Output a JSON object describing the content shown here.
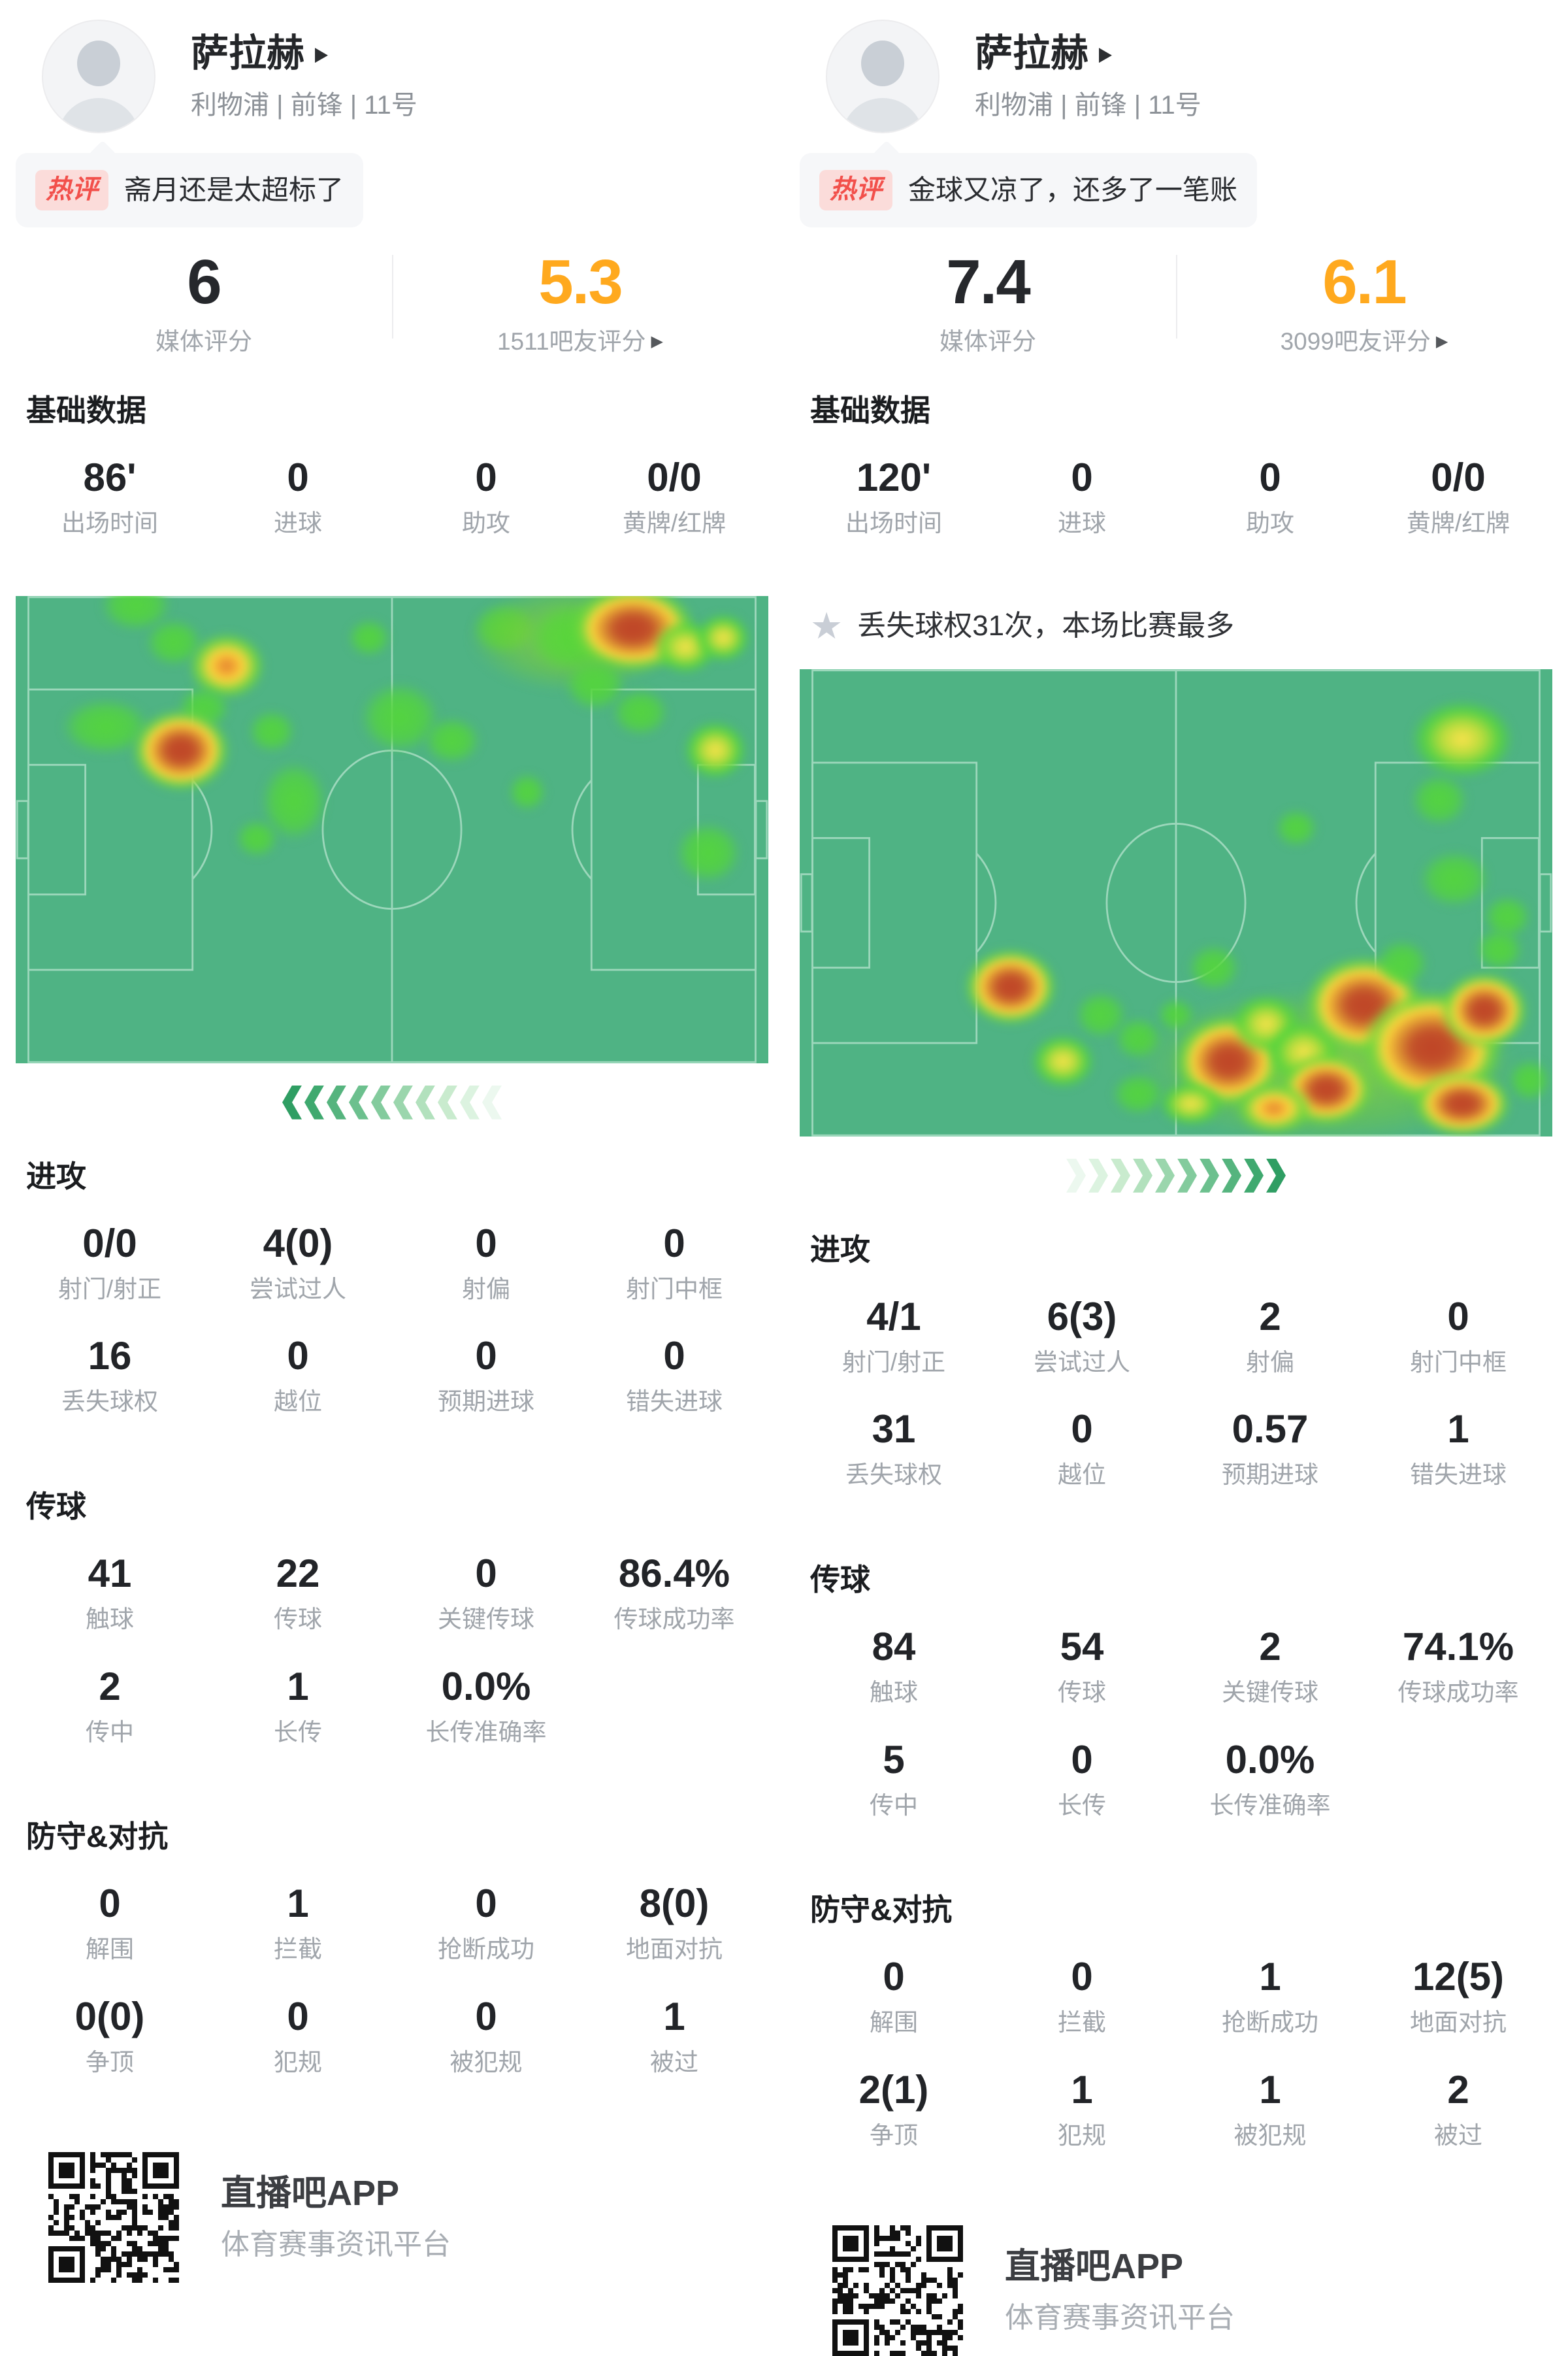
{
  "icons": {
    "name_arrow": "▶",
    "rating_arrow": "▶",
    "star": "★"
  },
  "colors": {
    "accent_orange": "#FFA91E",
    "badge_red": "#F2504B",
    "badge_bg": "#FBDCDA",
    "pitch_green": "#4FB384",
    "pitch_line": "#A5DCC2",
    "heat": {
      "g": "#54d63a",
      "y": "#ffe34d",
      "o": "#e2772e",
      "r": "#bf4326",
      "gl": "#8cd232"
    }
  },
  "app": {
    "footer_title": "直播吧APP",
    "footer_subtitle": "体育赛事资讯平台"
  },
  "panels": [
    {
      "player": {
        "name": "萨拉赫",
        "meta": "利物浦 | 前锋 | 11号"
      },
      "comment": {
        "badge": "热评",
        "text": "斋月还是太超标了"
      },
      "ratings": {
        "media_value": "6",
        "media_label": "媒体评分",
        "fan_value": "5.3",
        "fan_label": "1511吧友评分"
      },
      "basic_title": "基础数据",
      "basic_stats": [
        {
          "v": "86'",
          "l": "出场时间"
        },
        {
          "v": "0",
          "l": "进球"
        },
        {
          "v": "0",
          "l": "助攻"
        },
        {
          "v": "0/0",
          "l": "黄牌/红牌"
        }
      ],
      "banner": null,
      "heatmap": {
        "direction": "left",
        "chevrons": [
          "#2f9e63",
          "#3fa96f",
          "#55b47e",
          "#6cc08e",
          "#83cb9d",
          "#9bd6ad",
          "#b2e1bd",
          "#c9ebce",
          "#dcf3e0",
          "#ecf8ef"
        ],
        "spots": [
          [
            16,
            2,
            150,
            110,
            "g"
          ],
          [
            21,
            10,
            120,
            100,
            "g"
          ],
          [
            28,
            15,
            150,
            130,
            "o"
          ],
          [
            25,
            24,
            110,
            90,
            "g"
          ],
          [
            12,
            28,
            190,
            120,
            "g"
          ],
          [
            22,
            33,
            180,
            150,
            "r"
          ],
          [
            34,
            29,
            100,
            90,
            "g"
          ],
          [
            37,
            44,
            140,
            170,
            "g"
          ],
          [
            32,
            52,
            90,
            80,
            "g"
          ],
          [
            47,
            9,
            90,
            80,
            "g"
          ],
          [
            51,
            26,
            170,
            150,
            "g"
          ],
          [
            58,
            31,
            120,
            100,
            "g"
          ],
          [
            65,
            7,
            140,
            110,
            "g"
          ],
          [
            74,
            9,
            420,
            220,
            "gl"
          ],
          [
            74,
            9,
            190,
            150,
            "g"
          ],
          [
            82,
            7,
            230,
            160,
            "r"
          ],
          [
            89,
            11,
            130,
            110,
            "y"
          ],
          [
            94,
            9,
            110,
            100,
            "y"
          ],
          [
            77,
            19,
            130,
            110,
            "g"
          ],
          [
            83,
            25,
            120,
            100,
            "g"
          ],
          [
            93,
            33,
            130,
            120,
            "y"
          ],
          [
            68,
            42,
            80,
            80,
            "g"
          ],
          [
            92,
            55,
            140,
            130,
            "g"
          ]
        ]
      },
      "sections": [
        {
          "title": "进攻",
          "rows": [
            [
              {
                "v": "0/0",
                "l": "射门/射正"
              },
              {
                "v": "4(0)",
                "l": "尝试过人"
              },
              {
                "v": "0",
                "l": "射偏"
              },
              {
                "v": "0",
                "l": "射门中框"
              }
            ],
            [
              {
                "v": "16",
                "l": "丢失球权"
              },
              {
                "v": "0",
                "l": "越位"
              },
              {
                "v": "0",
                "l": "预期进球"
              },
              {
                "v": "0",
                "l": "错失进球"
              }
            ]
          ]
        },
        {
          "title": "传球",
          "rows": [
            [
              {
                "v": "41",
                "l": "触球"
              },
              {
                "v": "22",
                "l": "传球"
              },
              {
                "v": "0",
                "l": "关键传球"
              },
              {
                "v": "86.4%",
                "l": "传球成功率"
              }
            ],
            [
              {
                "v": "2",
                "l": "传中"
              },
              {
                "v": "1",
                "l": "长传"
              },
              {
                "v": "0.0%",
                "l": "长传准确率"
              }
            ]
          ]
        },
        {
          "title": "防守&对抗",
          "rows": [
            [
              {
                "v": "0",
                "l": "解围"
              },
              {
                "v": "1",
                "l": "拦截"
              },
              {
                "v": "0",
                "l": "抢断成功"
              },
              {
                "v": "8(0)",
                "l": "地面对抗"
              }
            ],
            [
              {
                "v": "0(0)",
                "l": "争顶"
              },
              {
                "v": "0",
                "l": "犯规"
              },
              {
                "v": "0",
                "l": "被犯规"
              },
              {
                "v": "1",
                "l": "被过"
              }
            ]
          ]
        }
      ]
    },
    {
      "player": {
        "name": "萨拉赫",
        "meta": "利物浦 | 前锋 | 11号"
      },
      "comment": {
        "badge": "热评",
        "text": "金球又凉了，还多了一笔账"
      },
      "ratings": {
        "media_value": "7.4",
        "media_label": "媒体评分",
        "fan_value": "6.1",
        "fan_label": "3099吧友评分"
      },
      "basic_title": "基础数据",
      "basic_stats": [
        {
          "v": "120'",
          "l": "出场时间"
        },
        {
          "v": "0",
          "l": "进球"
        },
        {
          "v": "0",
          "l": "助攻"
        },
        {
          "v": "0/0",
          "l": "黄牌/红牌"
        }
      ],
      "banner": {
        "text": "丢失球权31次，本场比赛最多"
      },
      "heatmap": {
        "direction": "right",
        "chevrons": [
          "#ecf8ef",
          "#dcf3e0",
          "#c9ebce",
          "#b2e1bd",
          "#9bd6ad",
          "#83cb9d",
          "#6cc08e",
          "#55b47e",
          "#3fa96f",
          "#2f9e63"
        ],
        "spots": [
          [
            88,
            15,
            210,
            160,
            "y"
          ],
          [
            85,
            28,
            120,
            110,
            "g"
          ],
          [
            66,
            34,
            90,
            80,
            "g"
          ],
          [
            87,
            45,
            150,
            120,
            "g"
          ],
          [
            94,
            53,
            100,
            90,
            "g"
          ],
          [
            28,
            68,
            170,
            140,
            "r"
          ],
          [
            40,
            74,
            110,
            100,
            "g"
          ],
          [
            45,
            79,
            100,
            90,
            "g"
          ],
          [
            50,
            74,
            80,
            70,
            "g"
          ],
          [
            70,
            85,
            780,
            320,
            "gl"
          ],
          [
            57,
            84,
            200,
            170,
            "r"
          ],
          [
            62,
            76,
            140,
            120,
            "y"
          ],
          [
            67,
            82,
            150,
            130,
            "y"
          ],
          [
            75,
            72,
            220,
            180,
            "r"
          ],
          [
            70,
            90,
            170,
            130,
            "r"
          ],
          [
            84,
            81,
            260,
            210,
            "r"
          ],
          [
            91,
            73,
            160,
            140,
            "r"
          ],
          [
            88,
            93,
            180,
            120,
            "r"
          ],
          [
            63,
            94,
            150,
            100,
            "o"
          ],
          [
            52,
            93,
            130,
            90,
            "y"
          ],
          [
            45,
            91,
            110,
            90,
            "g"
          ],
          [
            97,
            88,
            90,
            90,
            "g"
          ],
          [
            93,
            60,
            100,
            90,
            "g"
          ],
          [
            80,
            63,
            110,
            100,
            "g"
          ],
          [
            35,
            84,
            130,
            110,
            "y"
          ],
          [
            55,
            64,
            110,
            100,
            "g"
          ]
        ]
      },
      "sections": [
        {
          "title": "进攻",
          "rows": [
            [
              {
                "v": "4/1",
                "l": "射门/射正"
              },
              {
                "v": "6(3)",
                "l": "尝试过人"
              },
              {
                "v": "2",
                "l": "射偏"
              },
              {
                "v": "0",
                "l": "射门中框"
              }
            ],
            [
              {
                "v": "31",
                "l": "丢失球权"
              },
              {
                "v": "0",
                "l": "越位"
              },
              {
                "v": "0.57",
                "l": "预期进球"
              },
              {
                "v": "1",
                "l": "错失进球"
              }
            ]
          ]
        },
        {
          "title": "传球",
          "rows": [
            [
              {
                "v": "84",
                "l": "触球"
              },
              {
                "v": "54",
                "l": "传球"
              },
              {
                "v": "2",
                "l": "关键传球"
              },
              {
                "v": "74.1%",
                "l": "传球成功率"
              }
            ],
            [
              {
                "v": "5",
                "l": "传中"
              },
              {
                "v": "0",
                "l": "长传"
              },
              {
                "v": "0.0%",
                "l": "长传准确率"
              }
            ]
          ]
        },
        {
          "title": "防守&对抗",
          "rows": [
            [
              {
                "v": "0",
                "l": "解围"
              },
              {
                "v": "0",
                "l": "拦截"
              },
              {
                "v": "1",
                "l": "抢断成功"
              },
              {
                "v": "12(5)",
                "l": "地面对抗"
              }
            ],
            [
              {
                "v": "2(1)",
                "l": "争顶"
              },
              {
                "v": "1",
                "l": "犯规"
              },
              {
                "v": "1",
                "l": "被犯规"
              },
              {
                "v": "2",
                "l": "被过"
              }
            ]
          ]
        }
      ]
    }
  ]
}
